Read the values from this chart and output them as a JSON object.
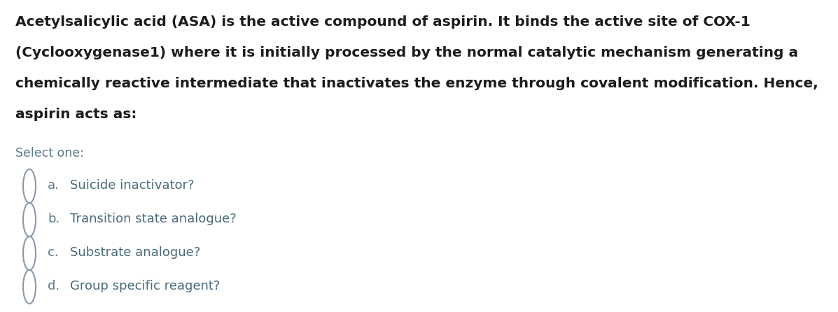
{
  "background_color": "#ffffff",
  "paragraph_lines": [
    "Acetylsalicylic acid (ASA) is the active compound of aspirin. It binds the active site of COX-1",
    "(Cyclooxygenase1) where it is initially processed by the normal catalytic mechanism generating a",
    "chemically reactive intermediate that inactivates the enzyme through covalent modification. Hence,",
    "aspirin acts as:"
  ],
  "paragraph_color": "#1c1c1c",
  "paragraph_fontsize": 14.5,
  "select_label": "Select one:",
  "select_color": "#5a7a8a",
  "select_fontsize": 12.5,
  "options": [
    {
      "letter": "a.",
      "text": "Suicide inactivator?"
    },
    {
      "letter": "b.",
      "text": "Transition state analogue?"
    },
    {
      "letter": "c.",
      "text": "Substrate analogue?"
    },
    {
      "letter": "d.",
      "text": "Group specific reagent?"
    }
  ],
  "option_letter_color": "#5a7a8a",
  "option_text_color": "#4a6a7a",
  "option_fontsize": 13.0,
  "circle_color": "#8a9aaa",
  "figsize": [
    11.97,
    4.46
  ],
  "dpi": 100
}
